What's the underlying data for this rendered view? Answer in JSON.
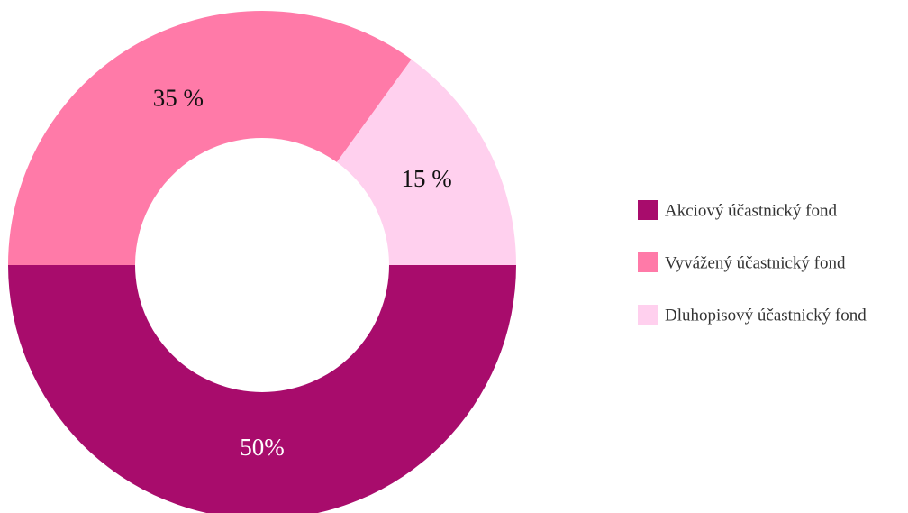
{
  "chart_data": {
    "type": "pie",
    "categories": [
      "Akciový účastnický fond",
      "Vyvážený účastnický fond",
      "Dluhopisový účastnický fond"
    ],
    "values": [
      50,
      35,
      15
    ],
    "value_labels": [
      "50%",
      "35 %",
      "15 %"
    ],
    "colors": [
      "#a80c6c",
      "#ff7aa8",
      "#ffd0ee"
    ],
    "label_colors": [
      "#ffffff",
      "#111111",
      "#111111"
    ],
    "donut": true,
    "legend": "right"
  }
}
